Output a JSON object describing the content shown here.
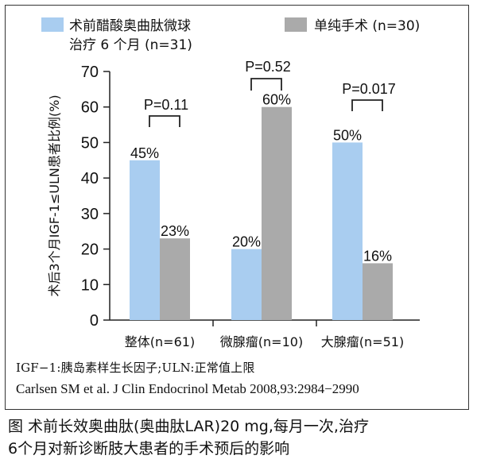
{
  "chart_data": {
    "type": "bar",
    "categories": [
      "整体(n=61)",
      "微腺瘤(n=10)",
      "大腺瘤(n=51)"
    ],
    "series": [
      {
        "name": "术前醋酸奥曲肽微球治疗6个月 (n=31)",
        "legend_lines": [
          "术前醋酸奥曲肽微球",
          "治疗 6 个月 (n=31)"
        ],
        "values": [
          45,
          20,
          50
        ],
        "labels": [
          "45%",
          "20%",
          "50%"
        ],
        "color": "#a9cdf0"
      },
      {
        "name": "单纯手术 (n=30)",
        "legend_lines": [
          "单纯手术 (n=30)"
        ],
        "values": [
          23,
          60,
          16
        ],
        "labels": [
          "23%",
          "60%",
          "16%"
        ],
        "color": "#aaaaaa"
      }
    ],
    "ylabel": "术后3个月IGF-1≤ULN患者比例(%)",
    "ylim": [
      0,
      70
    ],
    "yticks": [
      "0",
      "10",
      "20",
      "30",
      "40",
      "50",
      "60",
      "70"
    ],
    "p_values": [
      "P=0.11",
      "P=0.52",
      "P=0.017"
    ],
    "grid": false,
    "legend_position": "top"
  },
  "footnotes": {
    "abbreviations": "IGF−1:胰岛素样生长因子;ULN:正常值上限",
    "reference": "Carlsen SM et al. J Clin Endocrinol Metab 2008,93:2984−2990"
  },
  "caption": {
    "line1": "图 术前长效奥曲肽(奥曲肽LAR)20 mg,每月一次,治疗",
    "line2": "6个月对新诊断肢大患者的手术预后的影响"
  }
}
